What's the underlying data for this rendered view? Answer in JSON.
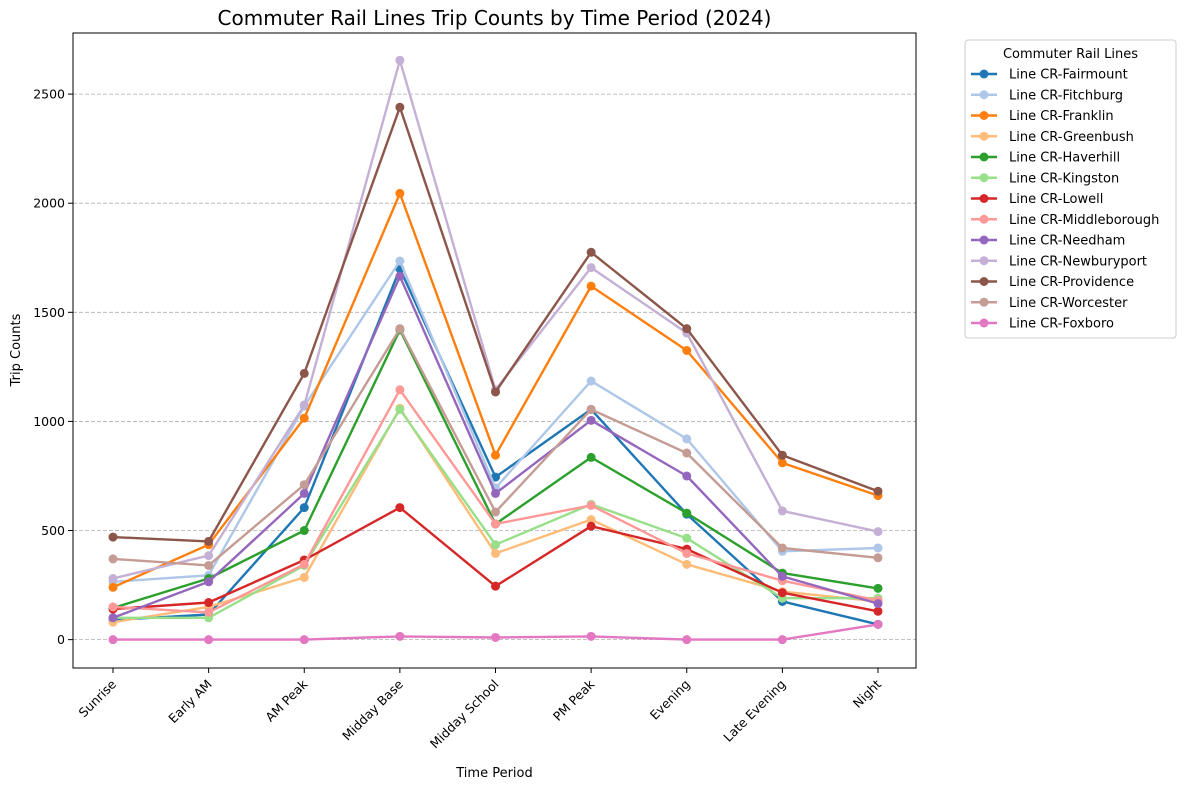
{
  "chart_data": {
    "type": "line",
    "title": "Commuter Rail Lines Trip Counts by Time Period (2024)",
    "xlabel": "Time Period",
    "ylabel": "Trip Counts",
    "ylim": [
      -130,
      2780
    ],
    "yticks": [
      0,
      500,
      1000,
      1500,
      2000,
      2500
    ],
    "grid": "y-dashed",
    "legend_title": "Commuter Rail Lines",
    "legend_position": "outside-upper-right",
    "categories": [
      "Sunrise",
      "Early AM",
      "AM Peak",
      "Midday Base",
      "Midday School",
      "PM Peak",
      "Evening",
      "Late Evening",
      "Night"
    ],
    "series": [
      {
        "name": "Line CR-Fairmount",
        "color": "#1f77b4",
        "values": [
          90,
          115,
          605,
          1700,
          745,
          1055,
          575,
          175,
          70
        ]
      },
      {
        "name": "Line CR-Fitchburg",
        "color": "#aec7e8",
        "values": [
          265,
          295,
          1070,
          1735,
          695,
          1185,
          920,
          405,
          420
        ]
      },
      {
        "name": "Line CR-Franklin",
        "color": "#ff7f0e",
        "values": [
          240,
          435,
          1015,
          2045,
          845,
          1620,
          1325,
          810,
          660
        ]
      },
      {
        "name": "Line CR-Greenbush",
        "color": "#ffbb78",
        "values": [
          80,
          150,
          285,
          1060,
          395,
          550,
          345,
          220,
          175
        ]
      },
      {
        "name": "Line CR-Haverhill",
        "color": "#2ca02c",
        "values": [
          145,
          280,
          500,
          1420,
          530,
          835,
          580,
          305,
          235
        ]
      },
      {
        "name": "Line CR-Kingston",
        "color": "#98df8a",
        "values": [
          100,
          100,
          340,
          1055,
          435,
          620,
          465,
          190,
          190
        ]
      },
      {
        "name": "Line CR-Lowell",
        "color": "#d62728",
        "values": [
          140,
          170,
          365,
          605,
          245,
          520,
          415,
          215,
          130
        ]
      },
      {
        "name": "Line CR-Middleborough",
        "color": "#ff9896",
        "values": [
          150,
          125,
          345,
          1145,
          530,
          615,
          395,
          270,
          180
        ]
      },
      {
        "name": "Line CR-Needham",
        "color": "#9467bd",
        "values": [
          100,
          265,
          670,
          1665,
          670,
          1005,
          750,
          290,
          165
        ]
      },
      {
        "name": "Line CR-Newburyport",
        "color": "#c5b0d5",
        "values": [
          280,
          385,
          1075,
          2655,
          1145,
          1705,
          1405,
          590,
          495
        ]
      },
      {
        "name": "Line CR-Providence",
        "color": "#8c564b",
        "values": [
          470,
          450,
          1220,
          2440,
          1135,
          1775,
          1425,
          845,
          680
        ]
      },
      {
        "name": "Line CR-Worcester",
        "color": "#c49c94",
        "values": [
          370,
          340,
          710,
          1425,
          585,
          1055,
          855,
          420,
          375
        ]
      },
      {
        "name": "Line CR-Foxboro",
        "color": "#e377c2",
        "values": [
          0,
          0,
          0,
          15,
          10,
          15,
          0,
          0,
          70
        ]
      }
    ]
  }
}
